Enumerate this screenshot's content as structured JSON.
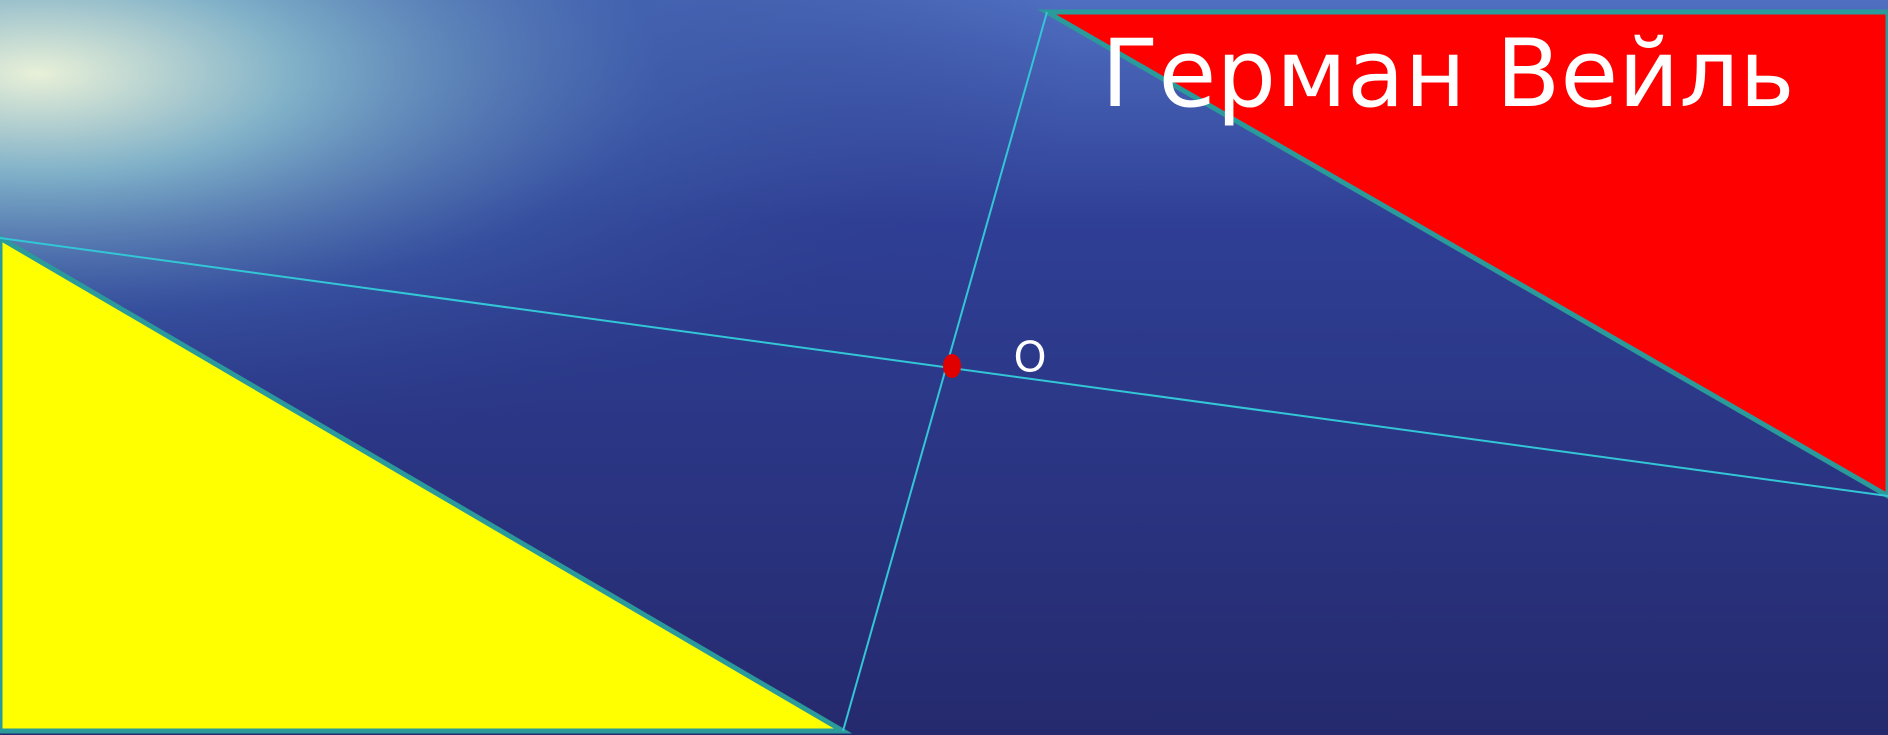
{
  "title": "Герман Вейль",
  "point_label": "O"
}
